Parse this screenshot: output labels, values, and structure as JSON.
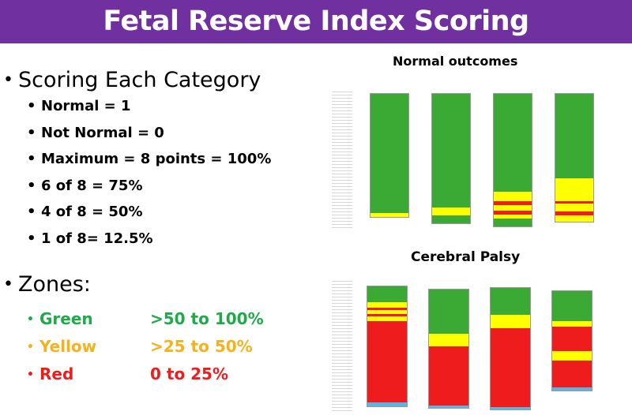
{
  "title": "Fetal Reserve Index Scoring",
  "scoring": {
    "heading": "Scoring Each Category",
    "items": [
      "Normal = 1",
      "Not Normal = 0",
      "Maximum = 8 points = 100%",
      "6 of 8 = 75%",
      "4 of 8 = 50%",
      "1 of 8= 12.5%"
    ]
  },
  "zones": {
    "heading": "Zones:",
    "items": [
      {
        "name": "Green",
        "range": ">50 to 100%",
        "color": "#1faa4a"
      },
      {
        "name": "Yellow",
        "range": ">25 to 50%",
        "color": "#f5b21b"
      },
      {
        "name": "Red",
        "range": "0 to 25%",
        "color": "#ee1c1c"
      }
    ]
  },
  "colors": {
    "title_bar": "#7030a0",
    "green": "#3aaa35",
    "yellow": "#ffff00",
    "red": "#ee1c1c",
    "blue": "#5ab4e6"
  },
  "charts": {
    "normal": {
      "title": "Normal outcomes",
      "columns": [
        {
          "segments": [
            {
              "c": "green",
              "v": 0.97
            },
            {
              "c": "yellow",
              "v": 0.03
            }
          ]
        },
        {
          "segments": [
            {
              "c": "green",
              "v": 0.88
            },
            {
              "c": "yellow",
              "v": 0.06
            },
            {
              "c": "green",
              "v": 0.06
            }
          ]
        },
        {
          "segments": [
            {
              "c": "green",
              "v": 0.74
            },
            {
              "c": "yellow",
              "v": 0.07
            },
            {
              "c": "red",
              "v": 0.03
            },
            {
              "c": "yellow",
              "v": 0.04
            },
            {
              "c": "red",
              "v": 0.03
            },
            {
              "c": "yellow",
              "v": 0.03
            },
            {
              "c": "green",
              "v": 0.06
            }
          ]
        },
        {
          "segments": [
            {
              "c": "green",
              "v": 0.66
            },
            {
              "c": "yellow",
              "v": 0.18
            },
            {
              "c": "red",
              "v": 0.02
            },
            {
              "c": "yellow",
              "v": 0.06
            },
            {
              "c": "red",
              "v": 0.03
            },
            {
              "c": "yellow",
              "v": 0.05
            }
          ]
        }
      ]
    },
    "cp": {
      "title": "Cerebral Palsy",
      "columns": [
        {
          "segments": [
            {
              "c": "green",
              "v": 0.13
            },
            {
              "c": "yellow",
              "v": 0.05
            },
            {
              "c": "red",
              "v": 0.02
            },
            {
              "c": "yellow",
              "v": 0.03
            },
            {
              "c": "red",
              "v": 0.02
            },
            {
              "c": "yellow",
              "v": 0.04
            },
            {
              "c": "red",
              "v": 0.68
            },
            {
              "c": "blue",
              "v": 0.03
            }
          ]
        },
        {
          "segments": [
            {
              "c": "green",
              "v": 0.37
            },
            {
              "c": "yellow",
              "v": 0.11
            },
            {
              "c": "red",
              "v": 0.5
            },
            {
              "c": "blue",
              "v": 0.02
            }
          ]
        },
        {
          "segments": [
            {
              "c": "green",
              "v": 0.22
            },
            {
              "c": "yellow",
              "v": 0.11
            },
            {
              "c": "red",
              "v": 0.65
            },
            {
              "c": "blue",
              "v": 0.02
            }
          ]
        },
        {
          "segments": [
            {
              "c": "green",
              "v": 0.3
            },
            {
              "c": "yellow",
              "v": 0.06
            },
            {
              "c": "red",
              "v": 0.24
            },
            {
              "c": "yellow",
              "v": 0.1
            },
            {
              "c": "red",
              "v": 0.27
            },
            {
              "c": "blue",
              "v": 0.03
            }
          ]
        }
      ]
    }
  }
}
